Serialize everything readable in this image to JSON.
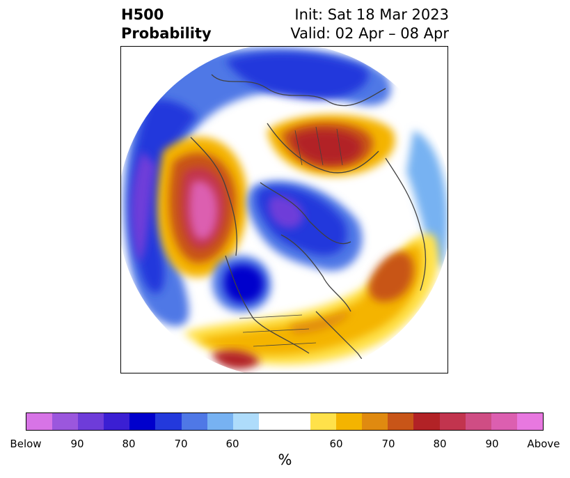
{
  "title": {
    "left_line1": "H500",
    "left_line2": "Probability",
    "right_line1": "Init: Sat 18 Mar 2023",
    "right_line2": "Valid: 02 Apr – 08 Apr"
  },
  "colorbar": {
    "colors": [
      "#d774e6",
      "#9b57dd",
      "#6e3cd9",
      "#3b1fd3",
      "#0000cc",
      "#2339dc",
      "#4f78e6",
      "#77b2f2",
      "#aedcfb",
      "#ffffff",
      "#ffffff",
      "#ffe14a",
      "#f4b400",
      "#e08a10",
      "#c85518",
      "#b22226",
      "#c2344e",
      "#cf4d84",
      "#dc5fb0",
      "#e878e0"
    ],
    "tick_labels": [
      "Below",
      "90",
      "80",
      "70",
      "60",
      "60",
      "70",
      "80",
      "90",
      "Above"
    ],
    "unit": "%"
  },
  "map": {
    "projection": "north-polar-stereographic",
    "above_color": "#e878e0",
    "below_color": "#0000cc"
  }
}
